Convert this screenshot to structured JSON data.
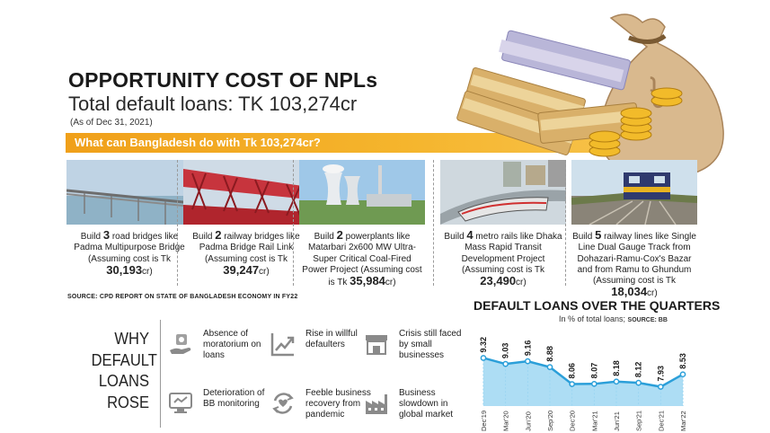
{
  "header": {
    "title": "OPPORTUNITY COST OF NPLs",
    "subtitle": "Total default loans: TK 103,274cr",
    "as_of": "(As of Dec 31, 2021)",
    "question": "What can Bangladesh do with Tk 103,274cr?"
  },
  "options": [
    {
      "pre": "Build ",
      "num": "3",
      "text": " road bridges like Padma Multipurpose Bridge (Assuming cost is Tk ",
      "cost": "30,193",
      "unit": "cr)"
    },
    {
      "pre": "Build ",
      "num": "2",
      "text": " railway bridges like Padma Bridge Rail Link (Assuming cost is Tk ",
      "cost": "39,247",
      "unit": "cr)"
    },
    {
      "pre": "Build ",
      "num": "2",
      "text": " powerplants like Matarbari 2x600 MW Ultra-Super Critical Coal-Fired Power Project (Assuming cost is Tk ",
      "cost": "35,984",
      "unit": "cr)"
    },
    {
      "pre": "Build ",
      "num": "4",
      "text": " metro rails like Dhaka Mass Rapid Transit Development Project (Assuming cost is Tk ",
      "cost": "23,490",
      "unit": "cr)"
    },
    {
      "pre": "Build ",
      "num": "5",
      "text": " railway lines like Single Line Dual Gauge Track from Dohazari-Ramu-Cox's Bazar and from Ramu to Ghundum (Assuming cost is Tk ",
      "cost": "18,034",
      "unit": "cr)"
    }
  ],
  "source_note": "SOURCE: CPD REPORT ON STATE OF BANGLADESH ECONOMY IN FY22",
  "why": {
    "lines": [
      "WHY",
      "DEFAULT",
      "LOANS",
      "ROSE"
    ],
    "reasons": [
      {
        "label": "Absence of moratorium on loans",
        "icon": "hand-money-icon"
      },
      {
        "label": "Rise in willful defaulters",
        "icon": "trend-up-icon"
      },
      {
        "label": "Crisis still faced by small businesses",
        "icon": "shop-icon"
      },
      {
        "label": "Deterioration of BB monitoring",
        "icon": "monitor-icon"
      },
      {
        "label": "Feeble business recovery from pandemic",
        "icon": "recovery-cycle-icon"
      },
      {
        "label": "Business slowdown in global market",
        "icon": "factory-icon"
      }
    ]
  },
  "colors": {
    "accent_orange": "#f5b52d",
    "chart_line": "#2b9fd9",
    "chart_fill": "#9fd7f2"
  },
  "chart_data": {
    "type": "area",
    "title": "DEFAULT LOANS OVER THE QUARTERS",
    "subtitle": "In % of total loans; ",
    "source": "SOURCE: BB",
    "categories": [
      "Dec'19",
      "Mar'20",
      "Jun'20",
      "Sep'20",
      "Dec'20",
      "Mar'21",
      "Jun'21",
      "Sep'21",
      "Dec'21",
      "Mar'22"
    ],
    "values": [
      9.32,
      9.03,
      9.16,
      8.88,
      8.06,
      8.07,
      8.18,
      8.12,
      7.93,
      8.53
    ],
    "value_labels": [
      "9.32",
      "9.03",
      "9.16",
      "8.88",
      "8.06",
      "8.07",
      "8.18",
      "8.12",
      "7.93",
      "8.53"
    ],
    "ylim": [
      7.0,
      9.6
    ],
    "xlabel": "",
    "ylabel": ""
  }
}
